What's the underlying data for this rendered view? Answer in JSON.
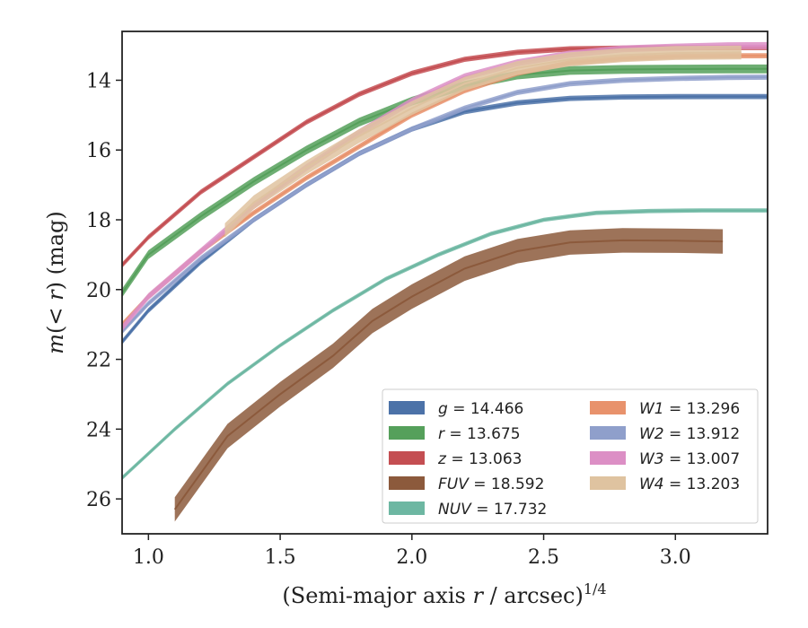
{
  "chart_data": {
    "type": "line",
    "title": "",
    "xlabel": {
      "main": "(Semi-major axis ",
      "var": "r",
      "unit": " / arcsec)",
      "sup": "1/4"
    },
    "ylabel": {
      "pre": "m",
      "mid": "(< ",
      "var": "r",
      "post": ") (mag)"
    },
    "xlim": [
      0.9,
      3.35
    ],
    "ylim": [
      27.0,
      12.6
    ],
    "y_inverted": true,
    "xticks": [
      1.0,
      1.5,
      2.0,
      2.5,
      3.0
    ],
    "xtick_labels": [
      "1.0",
      "1.5",
      "2.0",
      "2.5",
      "3.0"
    ],
    "yticks": [
      14,
      16,
      18,
      20,
      22,
      24,
      26
    ],
    "ytick_labels": [
      "14",
      "16",
      "18",
      "20",
      "22",
      "24",
      "26"
    ],
    "grid": false,
    "legend_position": "bottom-right",
    "series": [
      {
        "name": "g",
        "value": "14.466",
        "color": "#4c72a8",
        "x": [
          0.9,
          1.0,
          1.2,
          1.4,
          1.6,
          1.8,
          2.0,
          2.2,
          2.4,
          2.6,
          2.8,
          3.0,
          3.2,
          3.35
        ],
        "y": [
          21.5,
          20.6,
          19.2,
          18.0,
          17.0,
          16.1,
          15.4,
          14.9,
          14.65,
          14.52,
          14.48,
          14.47,
          14.466,
          14.466
        ],
        "band": 0.15
      },
      {
        "name": "r",
        "value": "13.675",
        "color": "#55a05b",
        "x": [
          0.9,
          1.0,
          1.2,
          1.4,
          1.6,
          1.8,
          2.0,
          2.2,
          2.4,
          2.6,
          2.8,
          3.0,
          3.2,
          3.35
        ],
        "y": [
          20.1,
          19.0,
          17.9,
          16.9,
          16.0,
          15.2,
          14.6,
          14.15,
          13.85,
          13.72,
          13.69,
          13.68,
          13.675,
          13.675
        ],
        "band": 0.25
      },
      {
        "name": "z",
        "value": "13.063",
        "color": "#c44e52",
        "x": [
          0.9,
          1.0,
          1.2,
          1.4,
          1.6,
          1.8,
          2.0,
          2.2,
          2.4,
          2.6,
          2.8,
          3.0,
          3.2,
          3.35
        ],
        "y": [
          19.3,
          18.5,
          17.2,
          16.2,
          15.2,
          14.4,
          13.8,
          13.4,
          13.2,
          13.1,
          13.08,
          13.07,
          13.063,
          13.063
        ],
        "band": 0.15
      },
      {
        "name": "FUV",
        "value": "18.592",
        "color": "#8c5a3c",
        "x": [
          1.1,
          1.3,
          1.5,
          1.7,
          1.85,
          2.0,
          2.2,
          2.4,
          2.6,
          2.8,
          3.0,
          3.18
        ],
        "y": [
          26.3,
          24.2,
          23.0,
          21.9,
          20.9,
          20.2,
          19.4,
          18.9,
          18.65,
          18.59,
          18.6,
          18.62
        ],
        "band": 0.7
      },
      {
        "name": "NUV",
        "value": "17.732",
        "color": "#6db7a2",
        "x": [
          0.9,
          1.1,
          1.3,
          1.5,
          1.7,
          1.9,
          2.1,
          2.3,
          2.5,
          2.7,
          2.9,
          3.1,
          3.35
        ],
        "y": [
          25.4,
          24.0,
          22.7,
          21.6,
          20.6,
          19.7,
          19.0,
          18.4,
          18.0,
          17.8,
          17.75,
          17.732,
          17.732
        ],
        "band": 0.12
      },
      {
        "name": "W1",
        "value": "13.296",
        "color": "#e8926c",
        "x": [
          0.9,
          1.0,
          1.2,
          1.4,
          1.6,
          1.8,
          2.0,
          2.2,
          2.4,
          2.6,
          2.8,
          3.0,
          3.2,
          3.35
        ],
        "y": [
          21.0,
          20.2,
          18.9,
          17.8,
          16.8,
          15.9,
          15.0,
          14.3,
          13.8,
          13.5,
          13.38,
          13.32,
          13.3,
          13.296
        ],
        "band": 0.15
      },
      {
        "name": "W2",
        "value": "13.912",
        "color": "#8f9fcb",
        "x": [
          0.9,
          1.0,
          1.2,
          1.4,
          1.6,
          1.8,
          2.0,
          2.2,
          2.4,
          2.6,
          2.8,
          3.0,
          3.2,
          3.35
        ],
        "y": [
          21.2,
          20.4,
          19.1,
          18.0,
          17.0,
          16.1,
          15.4,
          14.8,
          14.35,
          14.1,
          14.0,
          13.95,
          13.92,
          13.912
        ],
        "band": 0.15
      },
      {
        "name": "W3",
        "value": "13.007",
        "color": "#dc8fc5",
        "x": [
          0.9,
          1.0,
          1.2,
          1.4,
          1.6,
          1.8,
          2.0,
          2.2,
          2.4,
          2.6,
          2.8,
          3.0,
          3.2,
          3.35
        ],
        "y": [
          21.1,
          20.2,
          18.9,
          17.6,
          16.5,
          15.5,
          14.6,
          13.9,
          13.5,
          13.25,
          13.1,
          13.05,
          13.01,
          13.007
        ],
        "band": 0.2
      },
      {
        "name": "W4",
        "value": "13.203",
        "color": "#dfc3a0",
        "x": [
          1.29,
          1.4,
          1.6,
          1.8,
          2.0,
          2.2,
          2.4,
          2.6,
          2.8,
          3.0,
          3.25
        ],
        "y": [
          18.3,
          17.5,
          16.5,
          15.6,
          14.8,
          14.1,
          13.65,
          13.4,
          13.28,
          13.22,
          13.203
        ],
        "band": 0.4
      }
    ],
    "legend_columns": [
      [
        "g",
        "r",
        "z",
        "FUV",
        "NUV"
      ],
      [
        "W1",
        "W2",
        "W3",
        "W4"
      ]
    ]
  }
}
